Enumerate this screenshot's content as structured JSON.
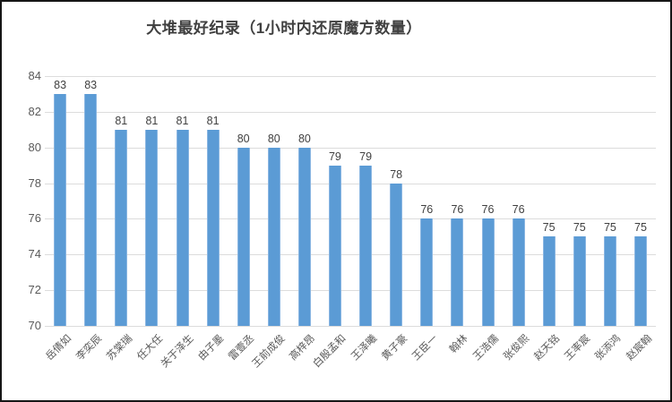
{
  "window": {
    "background": "#ffffff",
    "border_color": "#161616"
  },
  "chart_data": {
    "type": "bar",
    "title": "大堆最好纪录（1小时内还原魔方数量）",
    "categories": [
      "岳倩如",
      "李奕辰",
      "苏棠瑞",
      "任大任",
      "关于泽生",
      "由子墨",
      "雷壹丞",
      "王前成俊",
      "高梓昂",
      "白殷孟和",
      "王泽曦",
      "黄子豪",
      "王臣一",
      "翰林",
      "王浩儒",
      "张俊熙",
      "赵天铭",
      "王率宸",
      "张添鸿",
      "赵宸翰"
    ],
    "values": [
      83,
      83,
      81,
      81,
      81,
      81,
      80,
      80,
      80,
      79,
      79,
      78,
      76,
      76,
      76,
      76,
      75,
      75,
      75,
      75
    ],
    "value_labels_shown": true,
    "xlabel": "",
    "ylabel": "",
    "ylim": [
      70,
      84
    ],
    "yticks": [
      70,
      72,
      74,
      76,
      78,
      80,
      82,
      84
    ],
    "grid": "horizontal",
    "legend_position": "none",
    "colors": {
      "bar_fill": "#5b9bd5",
      "bar_edge_highlight": "#8ab6e2",
      "title_text": "#404040",
      "axis_text": "#595959",
      "value_label_text": "#404040",
      "gridline": "#dcdcdc"
    }
  }
}
